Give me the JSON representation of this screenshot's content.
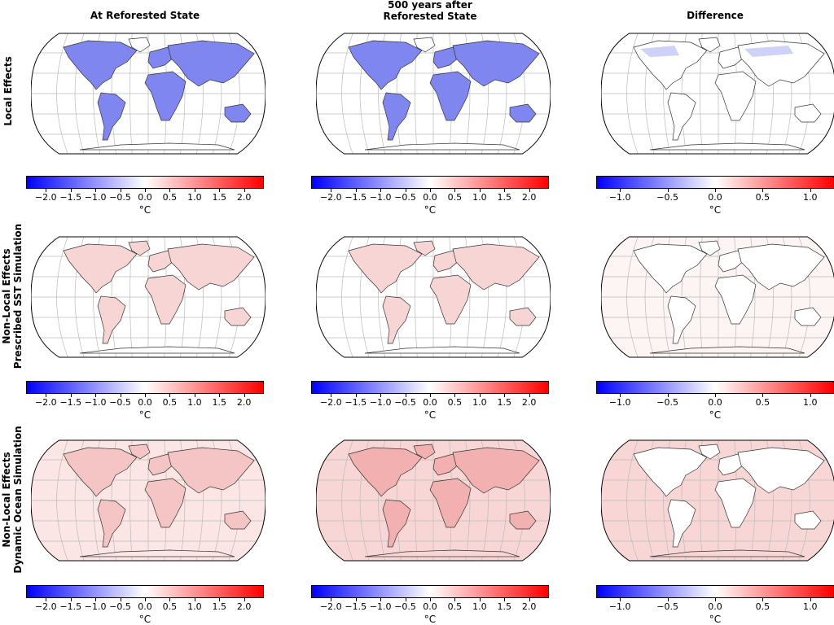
{
  "columns": [
    {
      "title_line1": "",
      "title_line2": "At Reforested State"
    },
    {
      "title_line1": "500 years after",
      "title_line2": "Reforested State"
    },
    {
      "title_line1": "",
      "title_line2": "Difference"
    }
  ],
  "rows": [
    {
      "title_line1": "",
      "title_line2": "Local Effects"
    },
    {
      "title_line1": "Non-Local Effects",
      "title_line2": "Prescribed SST Simulation"
    },
    {
      "title_line1": "Non-Local Effects",
      "title_line2": "Dynamic Ocean Simulation"
    }
  ],
  "colorbar": {
    "unit": "°C",
    "cmap": [
      "#0000ff",
      "#ffffff",
      "#ff0000"
    ],
    "wide": {
      "range": [
        -2.4,
        2.4
      ],
      "ticks": [
        "−2.0",
        "−1.5",
        "−1.0",
        "−0.5",
        "0.0",
        "0.5",
        "1.0",
        "1.5",
        "2.0"
      ],
      "values": [
        -2.0,
        -1.5,
        -1.0,
        -0.5,
        0.0,
        0.5,
        1.0,
        1.5,
        2.0
      ]
    },
    "narrow": {
      "range": [
        -1.25,
        1.25
      ],
      "ticks": [
        "−1.0",
        "−0.5",
        "0.0",
        "0.5",
        "1.0"
      ],
      "values": [
        -1.0,
        -0.5,
        0.0,
        0.5,
        1.0
      ]
    }
  },
  "panels": [
    {
      "row": 0,
      "col": 0,
      "land": "#7f86f0",
      "ocean": "#ffffff",
      "colorbar": "wide"
    },
    {
      "row": 0,
      "col": 1,
      "land": "#7f86f0",
      "ocean": "#ffffff",
      "colorbar": "wide"
    },
    {
      "row": 0,
      "col": 2,
      "land": "#ffffff",
      "ocean": "#ffffff",
      "colorbar": "narrow",
      "note_patches": "#c9cdf7"
    },
    {
      "row": 1,
      "col": 0,
      "land": "#f8d5d5",
      "ocean": "#ffffff",
      "colorbar": "wide"
    },
    {
      "row": 1,
      "col": 1,
      "land": "#f8d5d5",
      "ocean": "#ffffff",
      "colorbar": "wide"
    },
    {
      "row": 1,
      "col": 2,
      "land": "#ffffff",
      "ocean": "#fdf4f4",
      "colorbar": "narrow"
    },
    {
      "row": 2,
      "col": 0,
      "land": "#f5c4c4",
      "ocean": "#fbe5e5",
      "colorbar": "wide"
    },
    {
      "row": 2,
      "col": 1,
      "land": "#f2b0b0",
      "ocean": "#f8d6d6",
      "colorbar": "wide"
    },
    {
      "row": 2,
      "col": 2,
      "land": "#ffffff",
      "ocean": "#f8d6d6",
      "colorbar": "narrow"
    }
  ]
}
